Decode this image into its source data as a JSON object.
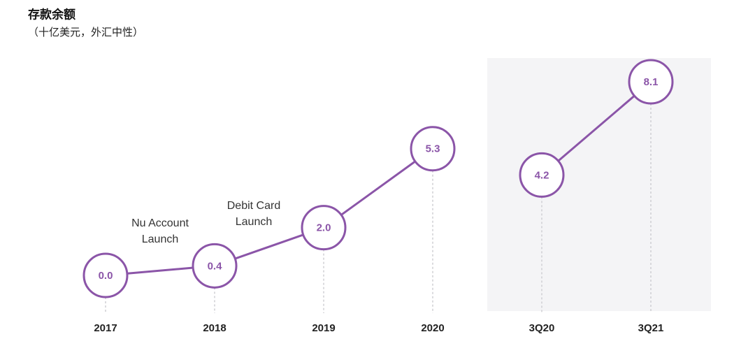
{
  "chart_data": {
    "type": "line",
    "title": "存款余额",
    "subtitle": "（十亿美元，外汇中性）",
    "categories": [
      "2017",
      "2018",
      "2019",
      "2020",
      "3Q20",
      "3Q21"
    ],
    "series": [
      {
        "color": "#8b55a8",
        "values": [
          0.0,
          0.4,
          2.0,
          5.3,
          null,
          null
        ],
        "value_labels": [
          "0.0",
          "0.4",
          "2.0",
          "5.3",
          null,
          null
        ]
      },
      {
        "color": "#8b55a8",
        "values": [
          null,
          null,
          null,
          null,
          4.2,
          8.1
        ],
        "value_labels": [
          null,
          null,
          null,
          null,
          "4.2",
          "8.1"
        ]
      }
    ],
    "annotations": [
      {
        "lines": [
          "Nu Account",
          "Launch"
        ]
      },
      {
        "lines": [
          "Debit Card",
          "Launch"
        ]
      }
    ]
  }
}
